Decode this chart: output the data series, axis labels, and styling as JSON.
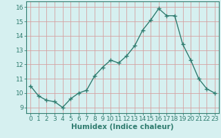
{
  "x": [
    0,
    1,
    2,
    3,
    4,
    5,
    6,
    7,
    8,
    9,
    10,
    11,
    12,
    13,
    14,
    15,
    16,
    17,
    18,
    19,
    20,
    21,
    22,
    23
  ],
  "y": [
    10.5,
    9.8,
    9.5,
    9.4,
    9.0,
    9.6,
    10.0,
    10.2,
    11.2,
    11.8,
    12.3,
    12.1,
    12.6,
    13.3,
    14.4,
    15.1,
    15.9,
    15.4,
    15.4,
    13.4,
    12.3,
    11.0,
    10.3,
    10.0
  ],
  "line_color": "#2e7b6e",
  "marker": "+",
  "marker_size": 4,
  "bg_color": "#d6f0f0",
  "grid_color_major": "#b8d8d8",
  "grid_color_minor": "#c8e8e8",
  "xlabel": "Humidex (Indice chaleur)",
  "xlabel_fontsize": 7.5,
  "ylabel_ticks": [
    9,
    10,
    11,
    12,
    13,
    14,
    15,
    16
  ],
  "xlim": [
    -0.5,
    23.5
  ],
  "ylim": [
    8.6,
    16.4
  ],
  "tick_fontsize": 6.5,
  "spine_color": "#2e7b6e",
  "line_width": 1.0
}
